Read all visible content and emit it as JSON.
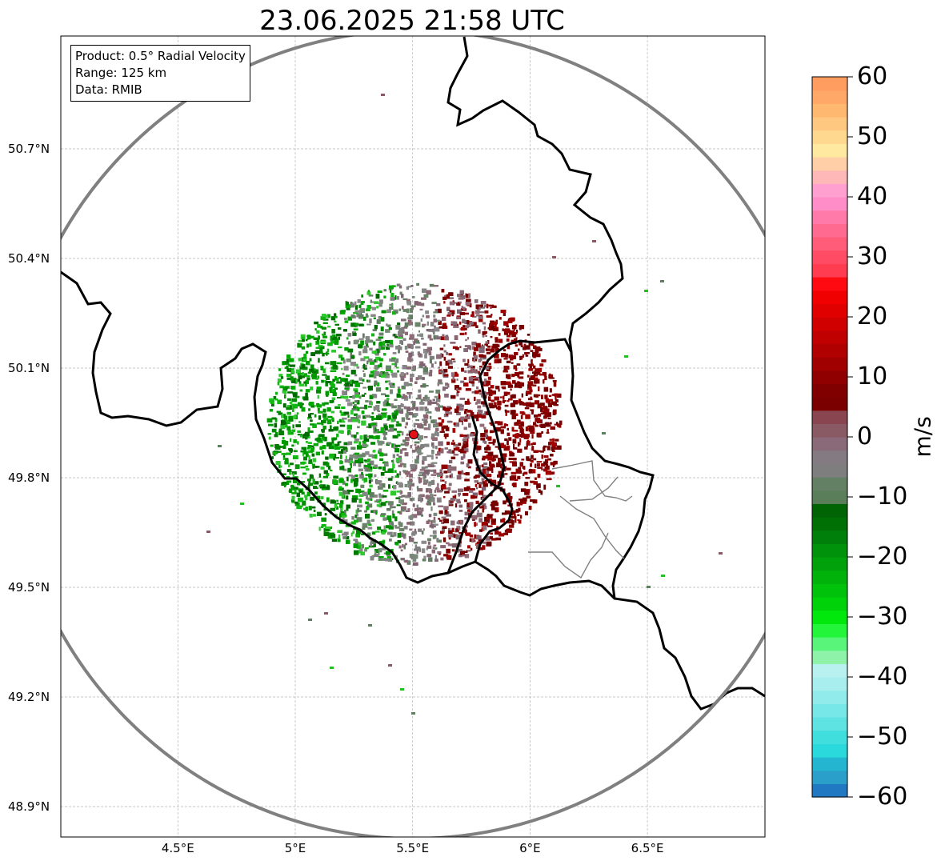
{
  "title": "23.06.2025 21:58 UTC",
  "info": {
    "product": "Product: 0.5° Radial Velocity",
    "range": "Range: 125 km",
    "data": "Data: RMIB"
  },
  "map": {
    "lon_range": [
      4.0,
      7.0
    ],
    "lat_range": [
      48.8,
      50.98
    ],
    "radar_site": {
      "lon": 5.5,
      "lat": 49.91
    },
    "range_ring_km": 125,
    "lat_ticks": [
      {
        "value": 50.7,
        "label": "50.7°N"
      },
      {
        "value": 50.4,
        "label": "50.4°N"
      },
      {
        "value": 50.1,
        "label": "50.1°N"
      },
      {
        "value": 49.8,
        "label": "49.8°N"
      },
      {
        "value": 49.5,
        "label": "49.5°N"
      },
      {
        "value": 49.2,
        "label": "49.2°N"
      },
      {
        "value": 48.9,
        "label": "48.9°N"
      }
    ],
    "lon_ticks": [
      {
        "value": 4.5,
        "label": "4.5°E"
      },
      {
        "value": 5.0,
        "label": "5°E"
      },
      {
        "value": 5.5,
        "label": "5.5°E"
      },
      {
        "value": 6.0,
        "label": "6°E"
      },
      {
        "value": 6.5,
        "label": "6.5°E"
      }
    ],
    "gridlines": true,
    "colors": {
      "border": "#000000",
      "subborder": "#808080",
      "ring": "#808080",
      "radar_site": "#e3101a"
    }
  },
  "colorbar": {
    "unit": "m/s",
    "min": -60,
    "max": 60,
    "ticks": [
      {
        "value": 60,
        "label": "60"
      },
      {
        "value": 50,
        "label": "50"
      },
      {
        "value": 40,
        "label": "40"
      },
      {
        "value": 30,
        "label": "30"
      },
      {
        "value": 20,
        "label": "20"
      },
      {
        "value": 10,
        "label": "10"
      },
      {
        "value": 0,
        "label": "0"
      },
      {
        "value": -10,
        "label": "−10"
      },
      {
        "value": -20,
        "label": "−20"
      },
      {
        "value": -30,
        "label": "−30"
      },
      {
        "value": -40,
        "label": "−40"
      },
      {
        "value": -50,
        "label": "−50"
      },
      {
        "value": -60,
        "label": "−60"
      }
    ],
    "colors": [
      "#1f78c1",
      "#2a9fc9",
      "#24b5d0",
      "#2ad9dc",
      "#41dede",
      "#5ee2e2",
      "#78e7e7",
      "#91ebeb",
      "#a8eeee",
      "#b9f0f0",
      "#8ef2a8",
      "#58f57a",
      "#22f53a",
      "#00e80c",
      "#00d20a",
      "#00c20a",
      "#00b20a",
      "#00a10a",
      "#00920a",
      "#00800a",
      "#007005",
      "#006405",
      "#5a7e5a",
      "#648064",
      "#7e7e7e",
      "#847a82",
      "#8a6a78",
      "#8a5a64",
      "#8a4650",
      "#7a0000",
      "#800000",
      "#900000",
      "#a00000",
      "#b00000",
      "#c00000",
      "#d00000",
      "#e00000",
      "#f00000",
      "#ff0a10",
      "#ff3c50",
      "#ff4c64",
      "#ff5c7a",
      "#ff6a90",
      "#ff7aa8",
      "#ff8ec8",
      "#ffa0d0",
      "#ffb8b8",
      "#ffd0a8",
      "#ffe8a0",
      "#ffd890",
      "#ffc880",
      "#ffb870",
      "#ffa868",
      "#ff9c60"
    ]
  },
  "radar": {
    "inbound_color": "#00a000",
    "outbound_color": "#7a0000",
    "neutral_color": "#888888"
  }
}
